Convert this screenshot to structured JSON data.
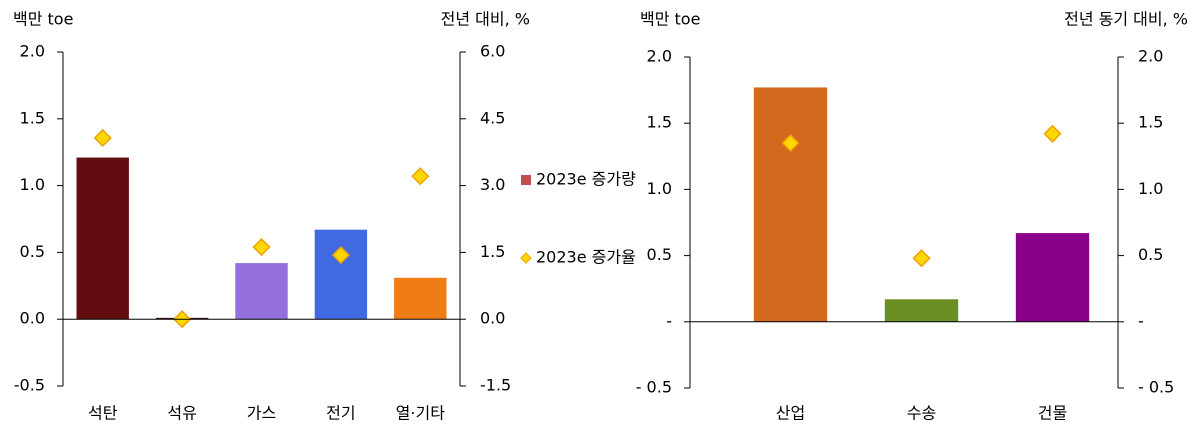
{
  "chart_data": [
    {
      "type": "bar",
      "y_label": "백만 toe",
      "y2_label": "전년 대비, %",
      "categories": [
        "석탄",
        "석유",
        "가스",
        "전기",
        "열·기타"
      ],
      "series": [
        {
          "name": "2023e 증가량",
          "color": "#c0504d",
          "colors": [
            "#620d0f",
            "#3a1010",
            "#9370db",
            "#4169e1",
            "#f07c18"
          ],
          "values": [
            1.21,
            0.01,
            0.42,
            0.67,
            0.31
          ]
        },
        {
          "name": "2023e 증가율",
          "type": "marker",
          "axis": "y2",
          "color": "#ffd700",
          "values": [
            4.07,
            0.0,
            1.62,
            1.44,
            3.21
          ]
        }
      ],
      "ylim": [
        -0.5,
        2.0
      ],
      "yticks": [
        -0.5,
        {
          "value": 0,
          "label": "0.0"
        },
        0.5,
        {
          "value": 1,
          "label": "1.0"
        },
        1.5,
        {
          "value": 2,
          "label": "2.0"
        }
      ],
      "y2lim": [
        -1.5,
        6.0
      ],
      "y2ticks": [
        -1.5,
        {
          "value": 0,
          "label": "0.0"
        },
        1.5,
        {
          "value": 3,
          "label": "3.0"
        },
        4.5,
        {
          "value": 6,
          "label": "6.0"
        }
      ],
      "legend": "right"
    },
    {
      "type": "bar",
      "y_label": "백만 toe",
      "y2_label": "전년 동기 대비, %",
      "categories": [
        "산업",
        "수송",
        "건물"
      ],
      "series": [
        {
          "colors": [
            "#d2691e",
            "#6b8e23",
            "#8b008b"
          ],
          "values": [
            1.77,
            0.17,
            0.67
          ]
        },
        {
          "type": "marker",
          "axis": "y2",
          "color": "#ffd700",
          "values": [
            1.35,
            0.48,
            1.42
          ]
        }
      ],
      "ylim": [
        -0.5,
        2.0
      ],
      "yticks": [
        {
          "value": -0.5,
          "label": "- 0.5"
        },
        {
          "value": 0,
          "label": "-"
        },
        0.5,
        {
          "value": 1,
          "label": "1.0"
        },
        1.5,
        {
          "value": 2,
          "label": "2.0"
        }
      ],
      "y2lim": [
        -0.5,
        2.0
      ],
      "y2ticks": [
        {
          "value": -0.5,
          "label": "- 0.5"
        },
        {
          "value": 0,
          "label": "-"
        },
        0.5,
        {
          "value": 1,
          "label": "1.0"
        },
        1.5,
        {
          "value": 2,
          "label": "2.0"
        }
      ]
    }
  ]
}
